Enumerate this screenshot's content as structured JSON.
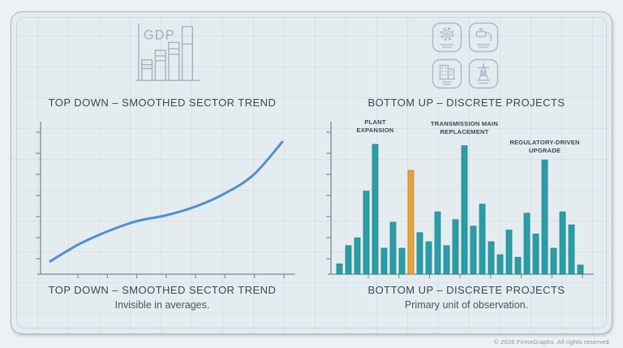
{
  "page": {
    "footer": "© 2026 FirmoGraphs. All rights reserved."
  },
  "left_panel": {
    "gdp_icon_label": "GDP",
    "top_title": "TOP DOWN – SMOOTHED SECTOR TREND",
    "bottom_title": "TOP DOWN – SMOOTHED SECTOR TREND",
    "subtitle": "Invisible in averages."
  },
  "right_panel": {
    "icons": [
      "gear-icon",
      "water-valve-icon",
      "building-icon",
      "transmission-tower-icon"
    ],
    "top_title": "BOTTOM UP – DISCRETE PROJECTS",
    "bottom_title": "BOTTOM UP – DISCRETE PROJECTS",
    "subtitle": "Primary unit of observation."
  },
  "colors": {
    "title_text": "#3d4751",
    "subtitle_text": "#4a545d",
    "footer_text": "#87929a",
    "axis": "#7a8894",
    "line_blue": "#4E90D0",
    "bar_teal": "#2A9DA6",
    "bar_teal_stroke": "#1f8891",
    "bar_highlight": "#E4A43C",
    "bar_highlight_stroke": "#c08420",
    "icon_stroke": "#a3b9c8",
    "annotation_text": "#3d4751"
  },
  "chart_data": [
    {
      "type": "line",
      "title": "TOP DOWN – SMOOTHED SECTOR TREND",
      "xlabel": "",
      "ylabel": "",
      "x": [
        0,
        12.5,
        25,
        37.5,
        50,
        62.5,
        75,
        87.5,
        100
      ],
      "y": [
        9,
        21,
        30,
        37,
        41,
        47,
        56,
        69,
        92
      ],
      "xlim": [
        0,
        100
      ],
      "ylim": [
        0,
        105
      ],
      "grid": false,
      "legend": "none",
      "x_tick_count": 8,
      "y_tick_count": 7
    },
    {
      "type": "bar",
      "title": "BOTTOM UP – DISCRETE PROJECTS",
      "xlabel": "",
      "ylabel": "",
      "values": [
        8,
        22,
        28,
        64,
        100,
        20,
        40,
        20,
        80,
        32,
        25,
        48,
        22,
        42,
        99,
        37,
        54,
        25,
        15,
        34,
        13,
        47,
        31,
        88,
        20,
        48,
        38,
        7
      ],
      "highlight_index": 8,
      "ylim": [
        0,
        105
      ],
      "grid": false,
      "legend": "none",
      "x_tick_count": 8,
      "y_tick_count": 7,
      "annotations": [
        {
          "lines": [
            "PLANT",
            "EXPANSION"
          ],
          "bar_index": 4,
          "text_y": [
            11,
            21
          ]
        },
        {
          "lines": [
            "TRANSMISSION MAIN",
            "REPLACEMENT"
          ],
          "bar_index": 14,
          "text_y": [
            13,
            23
          ]
        },
        {
          "lines": [
            "REGULATORY-DRIVEN",
            "UPGRADE"
          ],
          "bar_index": 23,
          "text_y": [
            36,
            46
          ]
        }
      ]
    }
  ]
}
